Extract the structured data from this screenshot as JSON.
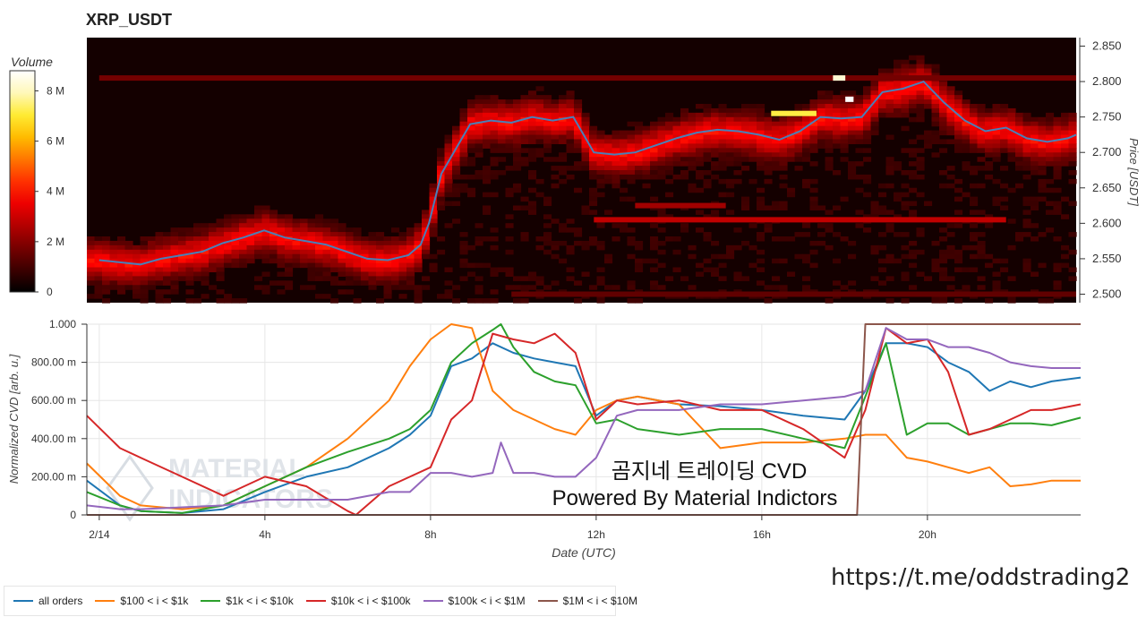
{
  "title": "XRP_USDT",
  "watermark_url": "https://t.me/oddstrading2",
  "overlay": {
    "line1": "곰지네 트레이딩 CVD",
    "line2": "Powered By Material Indictors"
  },
  "watermark_logo_text": [
    "MATERIAL",
    "INDICATORS"
  ],
  "colors": {
    "all_orders": "#1f77b4",
    "s100_1k": "#ff7f0e",
    "s1k_10k": "#2ca02c",
    "s10k_100k": "#d62728",
    "s100k_1M": "#9467bd",
    "s1M_10M": "#8c564b",
    "price_line": "#4a7fb8"
  },
  "chart_data": [
    {
      "type": "heatmap",
      "title": "XRP_USDT",
      "ylabel": "Price [USDT]",
      "ylim": [
        2.488,
        2.862
      ],
      "yticks": [
        2.5,
        2.55,
        2.6,
        2.65,
        2.7,
        2.75,
        2.8,
        2.85
      ],
      "ytick_labels": [
        "2.500",
        "2.550",
        "2.600",
        "2.650",
        "2.700",
        "2.750",
        "2.800",
        "2.850"
      ],
      "colorbar": {
        "label": "Volume",
        "range": [
          0,
          8800000
        ],
        "ticks": [
          0,
          2000000,
          4000000,
          6000000,
          8000000
        ],
        "tick_labels": [
          "0",
          "2 M",
          "4 M",
          "6 M",
          "8 M"
        ],
        "colormap": "black-red-yellow-white"
      },
      "price_series": {
        "name": "price",
        "x": [
          0.0,
          0.5,
          1.0,
          1.5,
          2.0,
          2.5,
          3.0,
          3.5,
          4.0,
          4.5,
          5.0,
          5.5,
          6.0,
          6.5,
          7.0,
          7.5,
          7.8,
          8.0,
          8.3,
          8.6,
          9.0,
          9.5,
          10.0,
          10.5,
          11.0,
          11.5,
          11.8,
          12.0,
          12.5,
          13.0,
          13.5,
          14.0,
          14.5,
          15.0,
          15.5,
          16.0,
          16.5,
          17.0,
          17.5,
          18.0,
          18.5,
          19.0,
          19.5,
          20.0,
          20.5,
          21.0,
          21.5,
          22.0,
          22.5,
          23.0,
          23.5,
          23.7
        ],
        "y": [
          2.548,
          2.545,
          2.542,
          2.55,
          2.555,
          2.56,
          2.572,
          2.58,
          2.59,
          2.58,
          2.575,
          2.57,
          2.56,
          2.55,
          2.548,
          2.555,
          2.57,
          2.6,
          2.67,
          2.7,
          2.74,
          2.745,
          2.742,
          2.75,
          2.745,
          2.75,
          2.72,
          2.7,
          2.697,
          2.7,
          2.71,
          2.72,
          2.728,
          2.732,
          2.73,
          2.725,
          2.718,
          2.73,
          2.75,
          2.748,
          2.75,
          2.785,
          2.79,
          2.8,
          2.77,
          2.745,
          2.73,
          2.735,
          2.72,
          2.715,
          2.72,
          2.725
        ]
      },
      "horizontal_bands": [
        {
          "price": 2.805,
          "x_start": 0.0,
          "x_end": 23.7,
          "volume": 1800000
        },
        {
          "price": 2.605,
          "x_start": 12.0,
          "x_end": 22.0,
          "volume": 3000000
        },
        {
          "price": 2.625,
          "x_start": 13.0,
          "x_end": 15.2,
          "volume": 2500000
        },
        {
          "price": 2.5,
          "x_start": 10.0,
          "x_end": 23.7,
          "volume": 1500000
        },
        {
          "price": 2.755,
          "x_start": 16.3,
          "x_end": 17.4,
          "volume": 7500000
        },
        {
          "price": 2.805,
          "x_start": 17.8,
          "x_end": 18.1,
          "volume": 8500000
        },
        {
          "price": 2.775,
          "x_start": 18.1,
          "x_end": 18.3,
          "volume": 9000000
        }
      ]
    },
    {
      "type": "line",
      "xlabel": "Date (UTC)",
      "ylabel": "Normalized CVD [arb. u.]",
      "xlim": [
        -0.3,
        23.7
      ],
      "ylim": [
        0,
        1.0
      ],
      "xticks": [
        0,
        4,
        8,
        12,
        16,
        20
      ],
      "xtick_labels": [
        "2/14",
        "4h",
        "8h",
        "12h",
        "16h",
        "20h"
      ],
      "yticks": [
        0,
        0.2,
        0.4,
        0.6,
        0.8,
        1.0
      ],
      "ytick_labels": [
        "0",
        "200.00 m",
        "400.00 m",
        "600.00 m",
        "800.00 m",
        "1.000"
      ],
      "grid": true,
      "legend_placement": "bottom",
      "series": [
        {
          "name": "all orders",
          "color_key": "all_orders",
          "x": [
            -0.3,
            0.5,
            1.0,
            2.0,
            3.0,
            4.0,
            5.0,
            6.0,
            7.0,
            7.5,
            8.0,
            8.5,
            9.0,
            9.5,
            10.0,
            10.5,
            11.0,
            11.5,
            12.0,
            12.5,
            13.0,
            14.0,
            15.0,
            16.0,
            17.0,
            18.0,
            18.5,
            19.0,
            19.5,
            20.0,
            20.5,
            21.0,
            21.5,
            22.0,
            22.5,
            23.0,
            23.7
          ],
          "y": [
            0.18,
            0.05,
            0.02,
            0.01,
            0.03,
            0.12,
            0.2,
            0.25,
            0.35,
            0.42,
            0.52,
            0.78,
            0.82,
            0.9,
            0.85,
            0.82,
            0.8,
            0.78,
            0.52,
            0.6,
            0.62,
            0.58,
            0.57,
            0.55,
            0.52,
            0.5,
            0.65,
            0.9,
            0.9,
            0.88,
            0.8,
            0.75,
            0.65,
            0.7,
            0.67,
            0.7,
            0.72
          ]
        },
        {
          "name": "$100 < i < $1k",
          "color_key": "s100_1k",
          "x": [
            -0.3,
            0.5,
            1.0,
            2.0,
            3.0,
            4.0,
            5.0,
            6.0,
            7.0,
            7.5,
            8.0,
            8.5,
            9.0,
            9.5,
            10.0,
            10.5,
            11.0,
            11.5,
            12.0,
            12.5,
            13.0,
            14.0,
            15.0,
            16.0,
            17.0,
            18.0,
            18.5,
            19.0,
            19.5,
            20.0,
            20.5,
            21.0,
            21.5,
            22.0,
            22.5,
            23.0,
            23.7
          ],
          "y": [
            0.27,
            0.1,
            0.05,
            0.03,
            0.05,
            0.15,
            0.25,
            0.4,
            0.6,
            0.78,
            0.92,
            1.0,
            0.98,
            0.65,
            0.55,
            0.5,
            0.45,
            0.42,
            0.55,
            0.6,
            0.62,
            0.58,
            0.35,
            0.38,
            0.38,
            0.4,
            0.42,
            0.42,
            0.3,
            0.28,
            0.25,
            0.22,
            0.25,
            0.15,
            0.16,
            0.18,
            0.18
          ]
        },
        {
          "name": "$1k < i < $10k",
          "color_key": "s1k_10k",
          "x": [
            -0.3,
            0.5,
            1.0,
            2.0,
            3.0,
            4.0,
            5.0,
            6.0,
            7.0,
            7.5,
            8.0,
            8.5,
            9.0,
            9.5,
            9.7,
            10.0,
            10.5,
            11.0,
            11.5,
            12.0,
            12.5,
            13.0,
            14.0,
            15.0,
            16.0,
            17.0,
            18.0,
            18.5,
            19.0,
            19.5,
            20.0,
            20.5,
            21.0,
            21.5,
            22.0,
            22.5,
            23.0,
            23.7
          ],
          "y": [
            0.12,
            0.05,
            0.02,
            0.01,
            0.05,
            0.15,
            0.25,
            0.33,
            0.4,
            0.45,
            0.55,
            0.8,
            0.9,
            0.97,
            1.0,
            0.88,
            0.75,
            0.7,
            0.68,
            0.48,
            0.5,
            0.45,
            0.42,
            0.45,
            0.45,
            0.4,
            0.35,
            0.62,
            0.9,
            0.42,
            0.48,
            0.48,
            0.42,
            0.45,
            0.48,
            0.48,
            0.47,
            0.51
          ]
        },
        {
          "name": "$10k < i < $100k",
          "color_key": "s10k_100k",
          "x": [
            -0.3,
            0.5,
            1.0,
            2.0,
            3.0,
            4.0,
            5.0,
            6.0,
            6.2,
            7.0,
            7.5,
            8.0,
            8.5,
            9.0,
            9.5,
            10.0,
            10.5,
            11.0,
            11.5,
            12.0,
            12.5,
            13.0,
            14.0,
            15.0,
            16.0,
            17.0,
            18.0,
            18.5,
            19.0,
            19.5,
            20.0,
            20.5,
            21.0,
            21.5,
            22.0,
            22.5,
            23.0,
            23.7
          ],
          "y": [
            0.52,
            0.35,
            0.3,
            0.2,
            0.1,
            0.2,
            0.15,
            0.02,
            0.0,
            0.15,
            0.2,
            0.25,
            0.5,
            0.6,
            0.95,
            0.92,
            0.9,
            0.95,
            0.85,
            0.5,
            0.6,
            0.58,
            0.6,
            0.55,
            0.55,
            0.45,
            0.3,
            0.55,
            0.98,
            0.9,
            0.92,
            0.75,
            0.42,
            0.45,
            0.5,
            0.55,
            0.55,
            0.58
          ]
        },
        {
          "name": "$100k < i < $1M",
          "color_key": "s100k_1M",
          "x": [
            -0.3,
            0.5,
            1.0,
            2.0,
            3.0,
            4.0,
            5.0,
            6.0,
            7.0,
            7.5,
            8.0,
            8.5,
            9.0,
            9.5,
            9.7,
            10.0,
            10.5,
            11.0,
            11.5,
            12.0,
            12.5,
            13.0,
            14.0,
            15.0,
            16.0,
            17.0,
            18.0,
            18.5,
            19.0,
            19.5,
            20.0,
            20.5,
            21.0,
            21.5,
            22.0,
            22.5,
            23.0,
            23.7
          ],
          "y": [
            0.05,
            0.03,
            0.03,
            0.04,
            0.05,
            0.08,
            0.08,
            0.08,
            0.12,
            0.12,
            0.22,
            0.22,
            0.2,
            0.22,
            0.38,
            0.22,
            0.22,
            0.2,
            0.2,
            0.3,
            0.52,
            0.55,
            0.55,
            0.58,
            0.58,
            0.6,
            0.62,
            0.65,
            0.98,
            0.92,
            0.92,
            0.88,
            0.88,
            0.85,
            0.8,
            0.78,
            0.77,
            0.77
          ]
        },
        {
          "name": "$1M < i < $10M",
          "color_key": "s1M_10M",
          "x": [
            -0.3,
            18.3,
            18.5,
            23.7
          ],
          "y": [
            0.0,
            0.0,
            1.0,
            1.0
          ]
        }
      ]
    }
  ]
}
